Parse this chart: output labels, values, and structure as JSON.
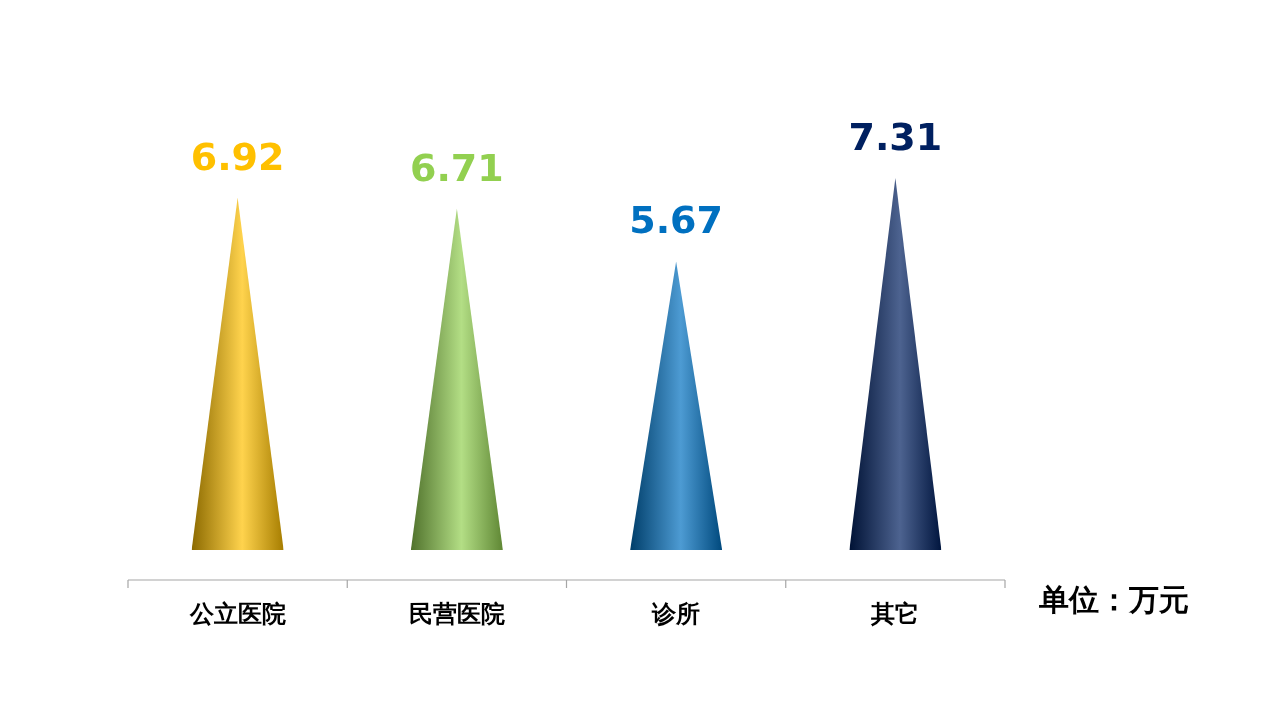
{
  "chart_data": {
    "type": "bar",
    "categories": [
      "公立医院",
      "民营医院",
      "诊所",
      "其它"
    ],
    "values": [
      6.92,
      6.71,
      5.67,
      7.31
    ],
    "colors": [
      "#ffc000",
      "#92d050",
      "#0070c0",
      "#002060"
    ],
    "data_labels": true,
    "annotations": [
      "单位：万元"
    ]
  }
}
